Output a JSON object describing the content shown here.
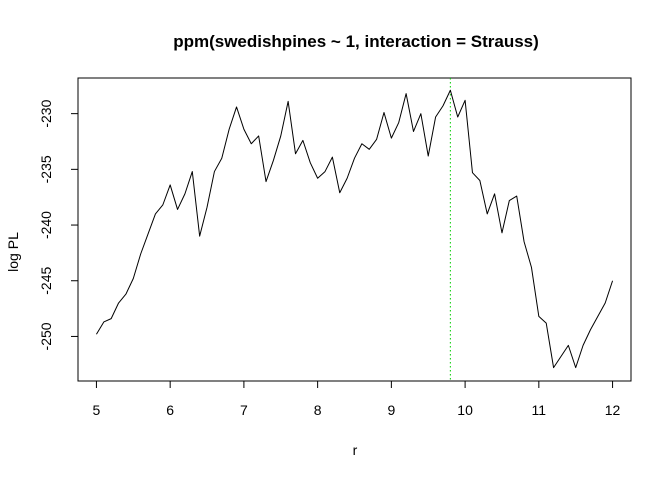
{
  "chart_data": {
    "type": "line",
    "title": "ppm(swedishpines ~ 1, interaction = Strauss)",
    "xlabel": "r",
    "ylabel": "log PL",
    "xlim": [
      4.75,
      12.25
    ],
    "ylim": [
      -254.0,
      -226.8
    ],
    "xticks": [
      5,
      6,
      7,
      8,
      9,
      10,
      11,
      12
    ],
    "yticks": [
      -250,
      -245,
      -240,
      -235,
      -230
    ],
    "grid": false,
    "legend": "none",
    "vline": {
      "x": 9.8,
      "color": "#00cc00",
      "style": "dotted"
    },
    "series": [
      {
        "color": "#000000",
        "x": [
          5.0,
          5.1,
          5.2,
          5.3,
          5.4,
          5.5,
          5.6,
          5.7,
          5.8,
          5.9,
          6.0,
          6.1,
          6.2,
          6.3,
          6.4,
          6.5,
          6.6,
          6.7,
          6.8,
          6.9,
          7.0,
          7.1,
          7.2,
          7.3,
          7.4,
          7.5,
          7.6,
          7.7,
          7.8,
          7.9,
          8.0,
          8.1,
          8.2,
          8.3,
          8.4,
          8.5,
          8.6,
          8.7,
          8.8,
          8.9,
          9.0,
          9.1,
          9.2,
          9.3,
          9.4,
          9.5,
          9.6,
          9.7,
          9.8,
          9.9,
          10.0,
          10.1,
          10.2,
          10.3,
          10.4,
          10.5,
          10.6,
          10.7,
          10.8,
          10.9,
          11.0,
          11.1,
          11.2,
          11.3,
          11.4,
          11.5,
          11.6,
          11.7,
          11.8,
          11.9,
          12.0
        ],
        "y": [
          -249.8,
          -248.7,
          -248.4,
          -247.0,
          -246.2,
          -244.8,
          -242.6,
          -240.8,
          -239.0,
          -238.2,
          -236.4,
          -238.6,
          -237.2,
          -235.2,
          -241.0,
          -238.4,
          -235.2,
          -234.0,
          -231.4,
          -229.4,
          -231.4,
          -232.7,
          -232.0,
          -236.1,
          -234.2,
          -232.0,
          -228.9,
          -233.6,
          -232.4,
          -234.4,
          -235.8,
          -235.2,
          -233.9,
          -237.1,
          -235.8,
          -234.0,
          -232.7,
          -233.2,
          -232.3,
          -229.9,
          -232.2,
          -230.8,
          -228.2,
          -231.6,
          -230.0,
          -233.8,
          -230.3,
          -229.3,
          -227.9,
          -230.3,
          -228.8,
          -235.3,
          -236.0,
          -239.0,
          -237.2,
          -240.7,
          -237.8,
          -237.4,
          -241.5,
          -243.8,
          -248.2,
          -248.8,
          -252.8,
          -251.8,
          -250.8,
          -252.8,
          -250.8,
          -249.4,
          -248.2,
          -247.0,
          -245.0
        ]
      }
    ]
  }
}
